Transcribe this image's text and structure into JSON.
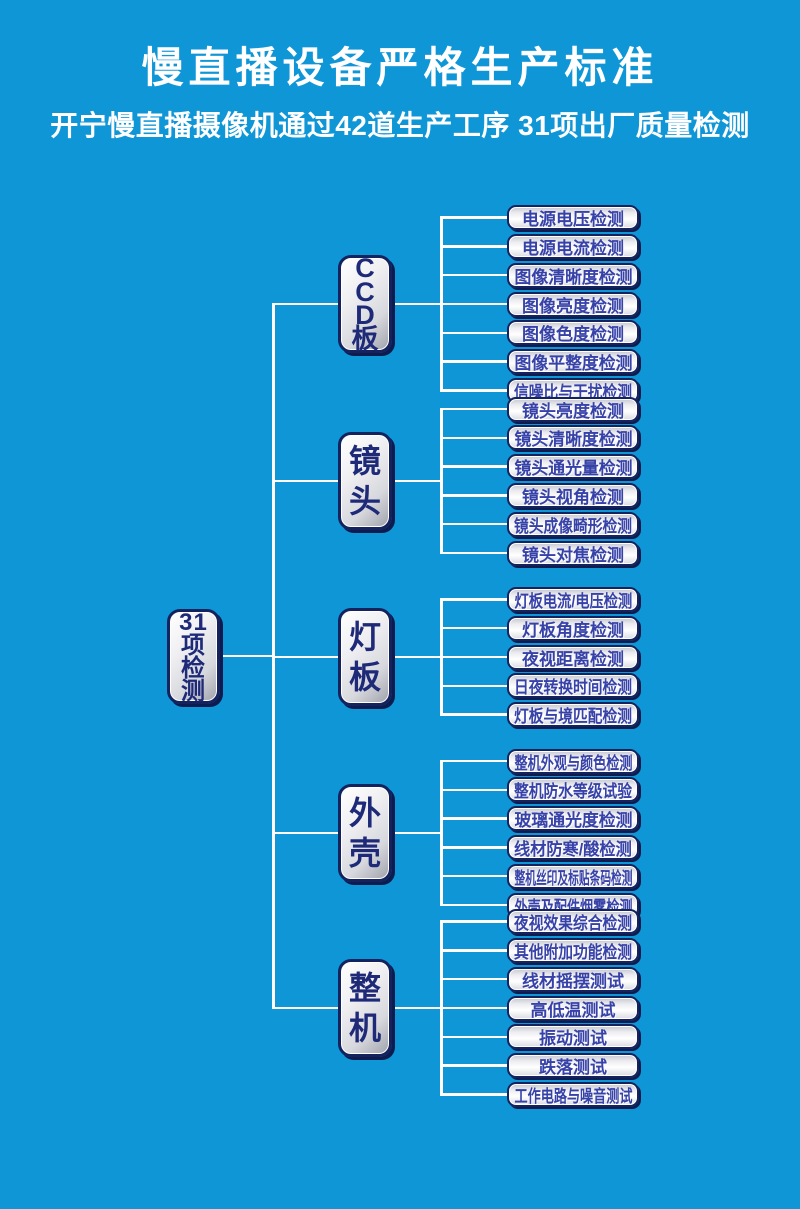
{
  "header": {
    "title": "慢直播设备严格生产标准",
    "subtitle": "开宁慢直播摄像机通过42道生产工序 31项出厂质量检测"
  },
  "colors": {
    "background": "#0e96d7",
    "connector": "#ffffff",
    "node_border": "#14235e",
    "node_shadow": "#0d1b4e",
    "category_text": "#1e2a78",
    "leaf_text": "#3742a8",
    "title_text": "#ffffff"
  },
  "tree": {
    "root": {
      "id": "total-inspections",
      "label": "31项检测"
    },
    "groups": [
      {
        "id": "ccd-board",
        "label": "CCD板",
        "items": [
          "电源电压检测",
          "电源电流检测",
          "图像清晰度检测",
          "图像亮度检测",
          "图像色度检测",
          "图像平整度检测",
          "信噪比与干扰检测"
        ]
      },
      {
        "id": "lens",
        "label": "镜头",
        "items": [
          "镜头亮度检测",
          "镜头清晰度检测",
          "镜头通光量检测",
          "镜头视角检测",
          "镜头成像畸形检测",
          "镜头对焦检测"
        ]
      },
      {
        "id": "light-board",
        "label": "灯板",
        "items": [
          "灯板电流/电压检测",
          "灯板角度检测",
          "夜视距离检测",
          "日夜转换时间检测",
          "灯板与境匹配检测"
        ]
      },
      {
        "id": "housing",
        "label": "外壳",
        "items": [
          "整机外观与颜色检测",
          "整机防水等级试验",
          "玻璃通光度检测",
          "线材防寒/酸检测",
          "整机丝印及标贴条码检测",
          "外壳及配件烟雾检测"
        ]
      },
      {
        "id": "whole-unit",
        "label": "整机",
        "items": [
          "夜视效果综合检测",
          "其他附加功能检测",
          "线材摇摆测试",
          "高低温测试",
          "振动测试",
          "跌落测试",
          "工作电路与噪音测试"
        ]
      }
    ]
  }
}
